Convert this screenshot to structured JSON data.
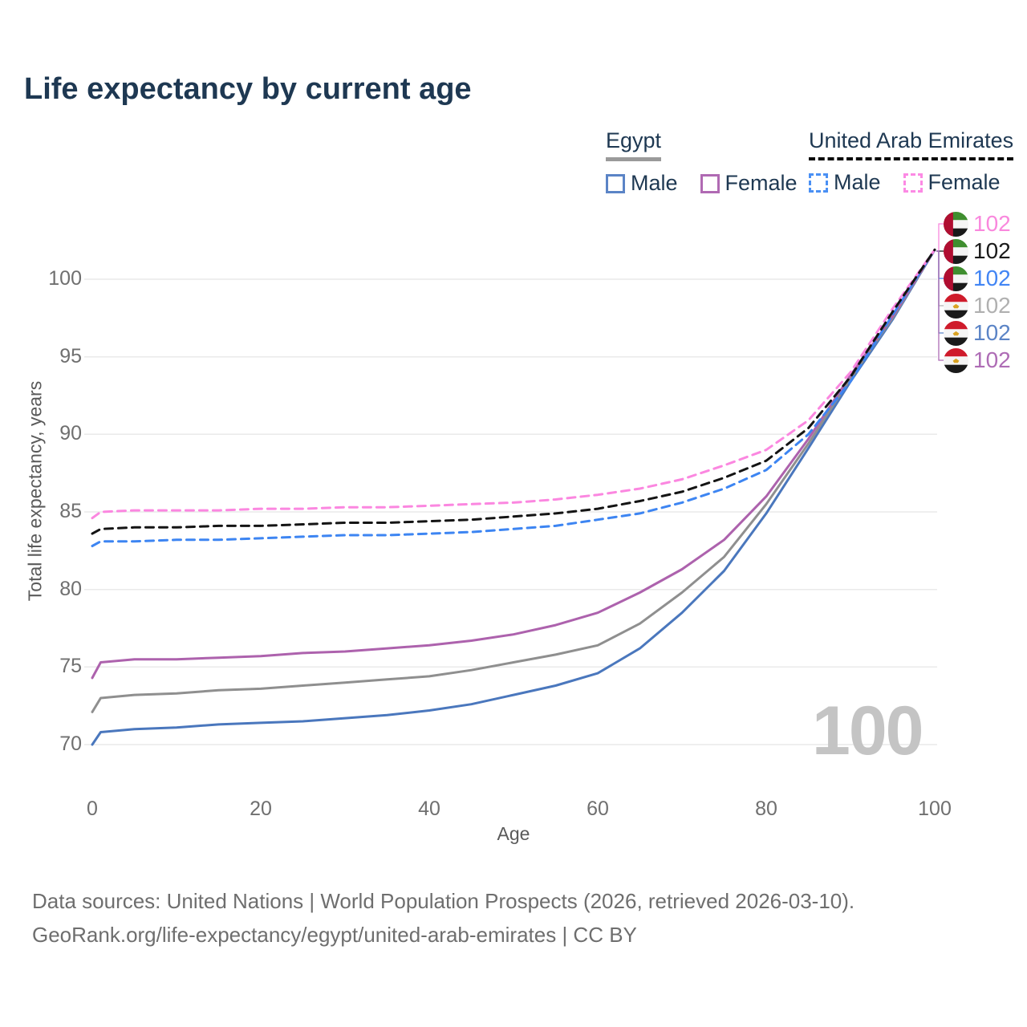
{
  "title": "Life expectancy by current age",
  "legend": {
    "egypt": {
      "label": "Egypt",
      "male": "Male",
      "female": "Female"
    },
    "uae": {
      "label": "United Arab Emirates",
      "male": "Male",
      "female": "Female"
    }
  },
  "watermark_age": "100",
  "footer": {
    "line1": "Data sources: United Nations | World Population Prospects (2026, retrieved 2026-03-10).",
    "line2": "GeoRank.org/life-expectancy/egypt/united-arab-emirates | CC BY"
  },
  "chart_data": {
    "type": "line",
    "title": "Life expectancy by current age",
    "xlabel": "Age",
    "ylabel": "Total life expectancy, years",
    "xlim": [
      0,
      100
    ],
    "ylim": [
      68.5,
      103
    ],
    "xticks": [
      0,
      20,
      40,
      60,
      80,
      100
    ],
    "yticks": [
      70,
      75,
      80,
      85,
      90,
      95,
      100
    ],
    "grid": "horizontal-only",
    "legend_position": "top-right",
    "ages": [
      0,
      1,
      5,
      10,
      15,
      20,
      25,
      30,
      35,
      40,
      45,
      50,
      55,
      60,
      65,
      70,
      75,
      80,
      85,
      90,
      95,
      100
    ],
    "series": [
      {
        "name": "Egypt Male",
        "country": "Egypt",
        "sex": "Male",
        "style": "solid",
        "color": "#4a77bd",
        "values": [
          70.0,
          70.8,
          71.0,
          71.1,
          71.3,
          71.4,
          71.5,
          71.7,
          71.9,
          72.2,
          72.6,
          73.2,
          73.8,
          74.6,
          76.2,
          78.5,
          81.2,
          84.9,
          89.1,
          93.4,
          97.4,
          101.9
        ]
      },
      {
        "name": "Egypt Both sexes",
        "country": "Egypt",
        "sex": "Both",
        "style": "solid",
        "color": "#8f8f8f",
        "values": [
          72.1,
          73.0,
          73.2,
          73.3,
          73.5,
          73.6,
          73.8,
          74.0,
          74.2,
          74.4,
          74.8,
          75.3,
          75.8,
          76.4,
          77.8,
          79.8,
          82.1,
          85.5,
          89.4,
          93.6,
          97.5,
          101.9
        ]
      },
      {
        "name": "Egypt Female",
        "country": "Egypt",
        "sex": "Female",
        "style": "solid",
        "color": "#ad62ad",
        "values": [
          74.3,
          75.3,
          75.5,
          75.5,
          75.6,
          75.7,
          75.9,
          76.0,
          76.2,
          76.4,
          76.7,
          77.1,
          77.7,
          78.5,
          79.8,
          81.3,
          83.2,
          86.0,
          89.7,
          93.8,
          97.6,
          101.9
        ]
      },
      {
        "name": "United Arab Emirates Male",
        "country": "United Arab Emirates",
        "sex": "Male",
        "style": "dashed",
        "color": "#3d85f2",
        "values": [
          82.8,
          83.1,
          83.1,
          83.2,
          83.2,
          83.3,
          83.4,
          83.5,
          83.5,
          83.6,
          83.7,
          83.9,
          84.1,
          84.5,
          84.9,
          85.6,
          86.5,
          87.7,
          90.0,
          93.4,
          97.7,
          101.9
        ]
      },
      {
        "name": "United Arab Emirates Female",
        "country": "United Arab Emirates",
        "sex": "Female",
        "style": "dashed",
        "color": "#fb87e0",
        "values": [
          84.6,
          85.0,
          85.1,
          85.1,
          85.1,
          85.2,
          85.2,
          85.3,
          85.3,
          85.4,
          85.5,
          85.6,
          85.8,
          86.1,
          86.5,
          87.1,
          88.0,
          89.0,
          90.9,
          94.0,
          98.1,
          101.9
        ]
      },
      {
        "name": "United Arab Emirates Both sexes",
        "country": "United Arab Emirates",
        "sex": "Both",
        "style": "dashed",
        "color": "#141414",
        "values": [
          83.6,
          83.9,
          84.0,
          84.0,
          84.1,
          84.1,
          84.2,
          84.3,
          84.3,
          84.4,
          84.5,
          84.7,
          84.9,
          85.2,
          85.7,
          86.3,
          87.2,
          88.3,
          90.4,
          93.7,
          97.9,
          101.9
        ]
      }
    ],
    "hover_age": "100",
    "end_labels": [
      {
        "flag": "uae",
        "series": "United Arab Emirates Female",
        "value": "102",
        "color": "#f988dd"
      },
      {
        "flag": "uae",
        "series": "United Arab Emirates Both sexes",
        "value": "102",
        "color": "#1a1a1a"
      },
      {
        "flag": "uae",
        "series": "United Arab Emirates Male",
        "value": "102",
        "color": "#4285f4"
      },
      {
        "flag": "egypt",
        "series": "Egypt Both sexes",
        "value": "102",
        "color": "#b0b0b0"
      },
      {
        "flag": "egypt",
        "series": "Egypt Male",
        "value": "102",
        "color": "#5b84c6"
      },
      {
        "flag": "egypt",
        "series": "Egypt Female",
        "value": "102",
        "color": "#ae6cb5"
      }
    ]
  }
}
